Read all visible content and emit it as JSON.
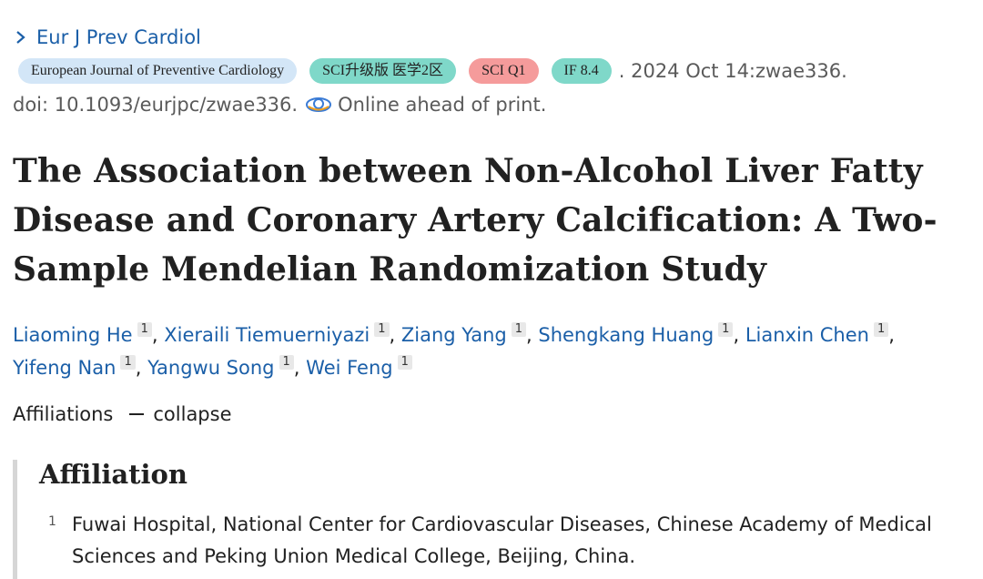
{
  "journal_link": "Eur J Prev Cardiol",
  "badges": {
    "journal": "European Journal of Preventive Cardiology",
    "sci": "SCI升级版 医学2区",
    "q1": "SCI Q1",
    "if": "IF 8.4"
  },
  "citation": {
    "tail": ". 2024 Oct 14:zwae336.",
    "doi": "doi: 10.1093/eurjpc/zwae336.",
    "status": "Online ahead of print."
  },
  "title": "The Association between Non-Alcohol Liver Fatty Disease and Coronary Artery Calcification: A Two-Sample Mendelian Randomization Study",
  "authors": [
    {
      "name": "Liaoming He",
      "sup": "1"
    },
    {
      "name": "Xieraili Tiemuerniyazi",
      "sup": "1"
    },
    {
      "name": "Ziang Yang",
      "sup": "1"
    },
    {
      "name": "Shengkang Huang",
      "sup": "1"
    },
    {
      "name": "Lianxin Chen",
      "sup": "1"
    },
    {
      "name": "Yifeng Nan",
      "sup": "1"
    },
    {
      "name": "Yangwu Song",
      "sup": "1"
    },
    {
      "name": "Wei Feng",
      "sup": "1"
    }
  ],
  "affiliations_toggle": {
    "label": "Affiliations",
    "action": "collapse"
  },
  "affiliation": {
    "heading": "Affiliation",
    "items": [
      {
        "num": "1",
        "text": "Fuwai Hospital, National Center for Cardiovascular Diseases, Chinese Academy of Medical Sciences and Peking Union Medical College, Beijing, China."
      }
    ]
  },
  "colors": {
    "link": "#1b5fa8",
    "badge_journal": "#d3e6f7",
    "badge_sci": "#7fd8c9",
    "badge_q1": "#f59b9b",
    "badge_if": "#7fd8c9"
  }
}
